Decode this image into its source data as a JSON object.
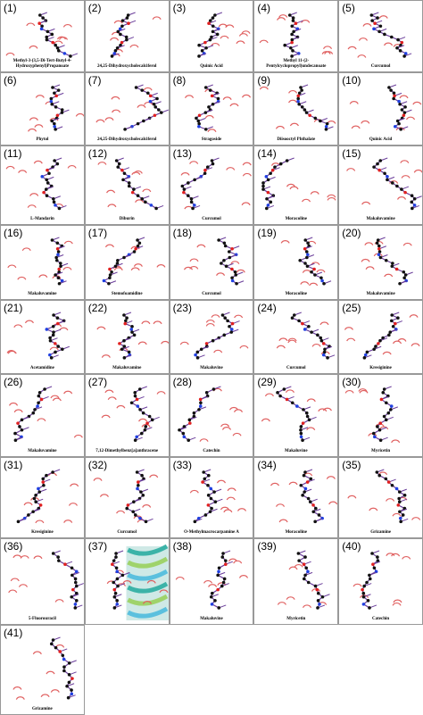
{
  "panels": [
    {
      "label": "(1)",
      "name": "Methyl-3-(3,5-Di-Tert-Butyl-4-Hydroxyphenyl)Propanoate"
    },
    {
      "label": "(2)",
      "name": "24,25-Dihydroxycholecalciferol"
    },
    {
      "label": "(3)",
      "name": "Quinic Acid"
    },
    {
      "label": "(4)",
      "name": "Methyl 11-(2-Pentylcyclopropyl)undecanoate"
    },
    {
      "label": "(5)",
      "name": "Curcumol"
    },
    {
      "label": "(6)",
      "name": "Phytol"
    },
    {
      "label": "(7)",
      "name": "24,25-Dihydroxycholecalciferol"
    },
    {
      "label": "(8)",
      "name": "Stragoside"
    },
    {
      "label": "(9)",
      "name": "Diisooctyl Phthalate"
    },
    {
      "label": "(10)",
      "name": "Quinic Acid"
    },
    {
      "label": "(11)",
      "name": "L-Mandarin"
    },
    {
      "label": "(12)",
      "name": "Diburin"
    },
    {
      "label": "(13)",
      "name": "Curcumol"
    },
    {
      "label": "(14)",
      "name": "Moracoline"
    },
    {
      "label": "(15)",
      "name": "Makaluvamine"
    },
    {
      "label": "(16)",
      "name": "Makaluvamine"
    },
    {
      "label": "(17)",
      "name": "Stemofoamidine"
    },
    {
      "label": "(18)",
      "name": "Curcumol"
    },
    {
      "label": "(19)",
      "name": "Moracoline"
    },
    {
      "label": "(20)",
      "name": "Makaluvamine"
    },
    {
      "label": "(21)",
      "name": "Acetamidine"
    },
    {
      "label": "(22)",
      "name": "Makaluvamine"
    },
    {
      "label": "(23)",
      "name": "Makaluvine"
    },
    {
      "label": "(24)",
      "name": "Curcumol"
    },
    {
      "label": "(25)",
      "name": "Kresiginine"
    },
    {
      "label": "(26)",
      "name": "Makaluvamine"
    },
    {
      "label": "(27)",
      "name": "7,12-Dimethylbenz[a]anthracene"
    },
    {
      "label": "(28)",
      "name": "Catechin"
    },
    {
      "label": "(29)",
      "name": "Makaluvine"
    },
    {
      "label": "(30)",
      "name": "Myricetin"
    },
    {
      "label": "(31)",
      "name": "Kresiginine"
    },
    {
      "label": "(32)",
      "name": "Curcumol"
    },
    {
      "label": "(33)",
      "name": "O-Methylmacrocarpamine A"
    },
    {
      "label": "(34)",
      "name": "Moracoline"
    },
    {
      "label": "(35)",
      "name": "Grizamine"
    },
    {
      "label": "(36)",
      "name": "5-Fluorouracil"
    },
    {
      "label": "(37)"
    },
    {
      "label": "(38)",
      "name": "Makaluvine"
    },
    {
      "label": "(39)",
      "name": "Myricetin"
    },
    {
      "label": "(40)",
      "name": "Catechin"
    },
    {
      "label": "(41)",
      "name": "Grizamine"
    }
  ]
}
